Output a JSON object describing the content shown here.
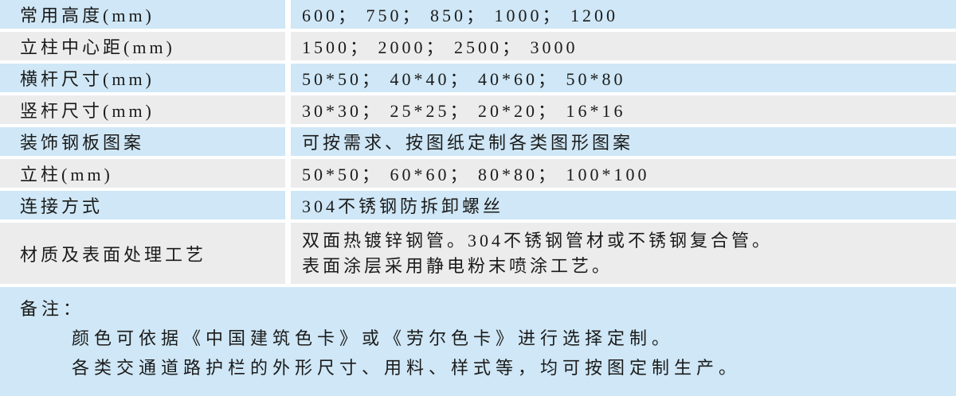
{
  "table": {
    "rows": [
      {
        "label": "常用高度(mm)",
        "value": "600； 750； 850； 1000； 1200"
      },
      {
        "label": "立柱中心距(mm)",
        "value": "1500； 2000； 2500； 3000"
      },
      {
        "label": "横杆尺寸(mm)",
        "value": "50*50； 40*40； 40*60； 50*80"
      },
      {
        "label": "竖杆尺寸(mm)",
        "value": "30*30； 25*25； 20*20； 16*16"
      },
      {
        "label": "装饰钢板图案",
        "value": "可按需求、按图纸定制各类图形图案"
      },
      {
        "label": "立柱(mm)",
        "value": "50*50； 60*60； 80*80； 100*100"
      },
      {
        "label": "连接方式",
        "value": "304不锈钢防拆卸螺丝"
      },
      {
        "label": "材质及表面处理工艺",
        "value_lines": [
          "双面热镀锌钢管。304不锈钢管材或不锈钢复合管。",
          "表面涂层采用静电粉末喷涂工艺。"
        ]
      }
    ]
  },
  "remarks": {
    "title": "备注：",
    "lines": [
      "颜色可依据《中国建筑色卡》或《劳尔色卡》进行选择定制。",
      "各类交通道路护栏的外形尺寸、用料、样式等，均可按图定制生产。"
    ]
  },
  "colors": {
    "row_blue": "#cfe7f6",
    "row_gray": "#ececec",
    "separator": "#ffffff",
    "text": "#1b1b1b"
  }
}
